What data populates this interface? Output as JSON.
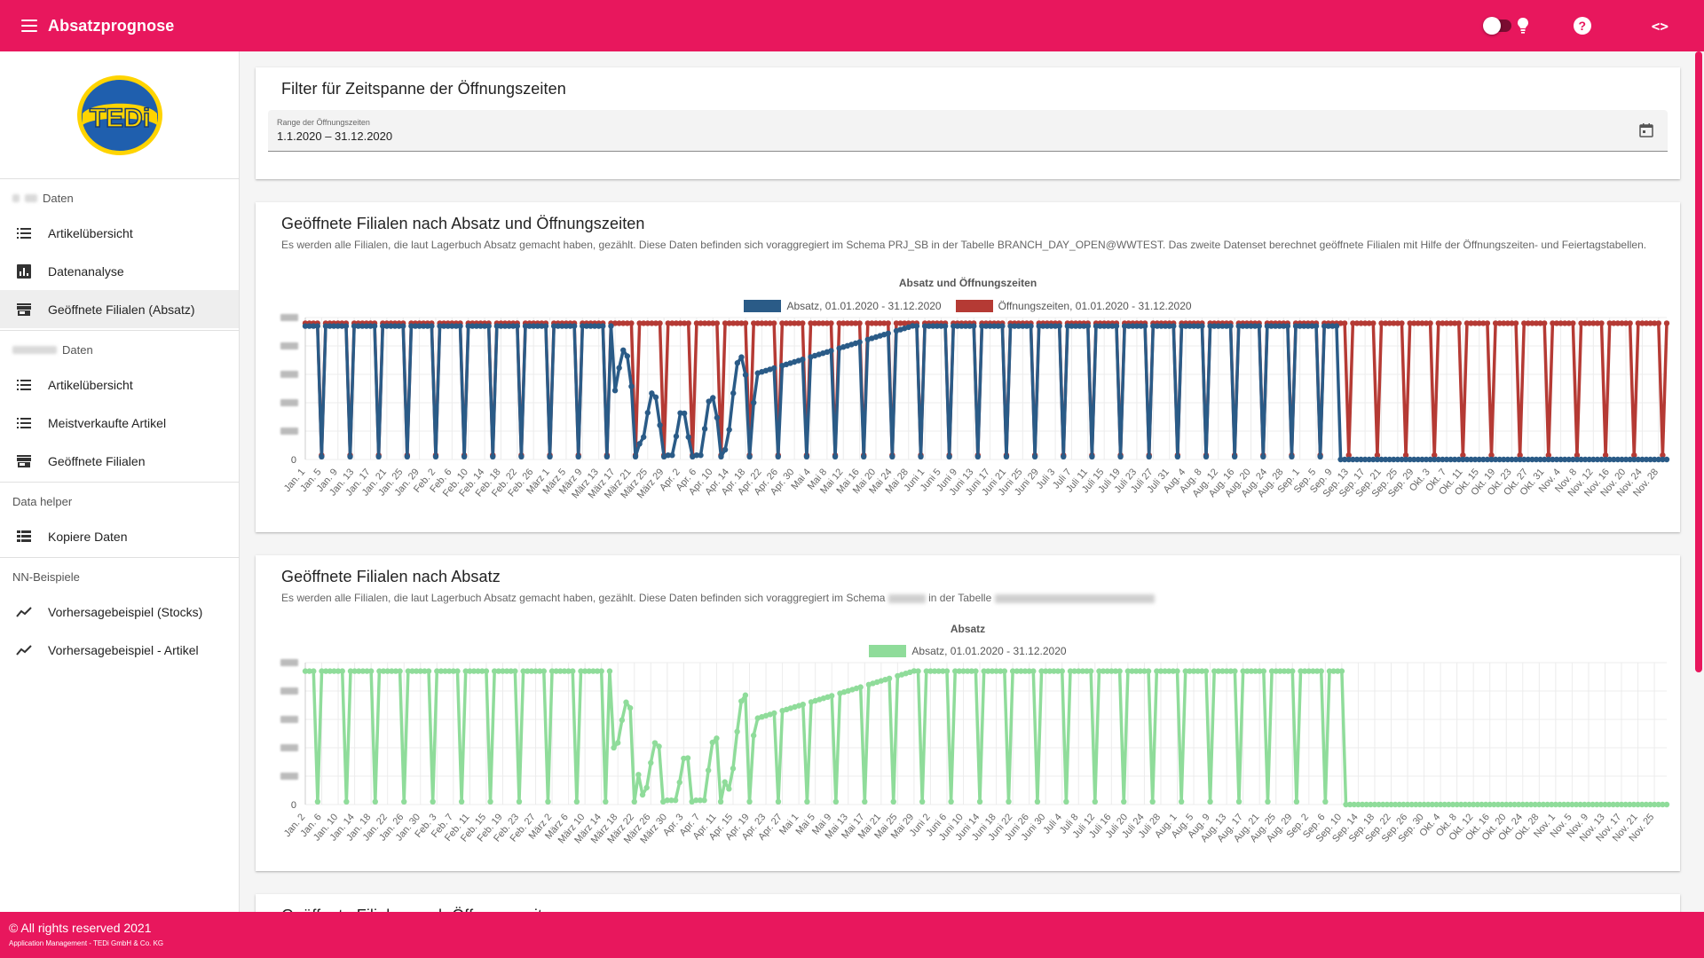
{
  "app": {
    "title": "Absatzprognose",
    "brand_color": "#e8175d"
  },
  "header": {
    "toggle_state": "on",
    "help_label": "?",
    "code_label": "<>"
  },
  "sidebar": {
    "logo_text": "TEDi",
    "sections": [
      {
        "label": "Daten",
        "items": [
          {
            "label": "Artikelübersicht",
            "icon": "list-icon"
          },
          {
            "label": "Datenanalyse",
            "icon": "analytics-icon"
          },
          {
            "label": "Geöffnete Filialen (Absatz)",
            "icon": "store-icon",
            "active": true
          }
        ]
      },
      {
        "label": "Daten",
        "items": [
          {
            "label": "Artikelübersicht",
            "icon": "list-icon"
          },
          {
            "label": "Meistverkaufte Artikel",
            "icon": "list-icon"
          },
          {
            "label": "Geöffnete Filialen",
            "icon": "store-icon"
          }
        ]
      },
      {
        "label": "Data helper",
        "items": [
          {
            "label": "Kopiere Daten",
            "icon": "table-icon"
          }
        ]
      },
      {
        "label": "NN-Beispiele",
        "items": [
          {
            "label": "Vorhersagebeispiel (Stocks)",
            "icon": "trend-icon"
          },
          {
            "label": "Vorhersagebeispiel - Artikel",
            "icon": "trend-icon"
          }
        ]
      }
    ]
  },
  "filter": {
    "title": "Filter für Zeitspanne der Öffnungszeiten",
    "field_label": "Range der Öffnungszeiten",
    "field_value": "1.1.2020 – 31.12.2020"
  },
  "card1": {
    "title": "Geöffnete Filialen nach Absatz und Öffnungszeiten",
    "description": "Es werden alle Filialen, die laut Lagerbuch Absatz gemacht haben, gezählt. Diese Daten befinden sich voraggregiert im Schema PRJ_SB in der Tabelle BRANCH_DAY_OPEN@WWTEST. Das zweite Datenset berechnet geöffnete Filialen mit Hilfe der Öffnungszeiten- und Feiertagstabellen."
  },
  "card2": {
    "title": "Geöffnete Filialen nach Absatz",
    "description_part1": "Es werden alle Filialen, die laut Lagerbuch Absatz gemacht haben, gezählt. Diese Daten befinden sich voraggregiert im Schema",
    "description_part2": "in der Tabelle"
  },
  "card3": {
    "title": "Geöffnete Filialen nach Öffnungszeiten"
  },
  "footer": {
    "copyright": "© All rights reserved 2021",
    "subline": "Application Management - TEDi GmbH & Co. KG"
  },
  "chart_data": [
    {
      "type": "line",
      "title": "Absatz und Öffnungszeiten",
      "y_tick_labels_visible": [
        "0"
      ],
      "x_tick_labels": [
        "Jan. 1",
        "Jan. 5",
        "Jan. 9",
        "Jan. 13",
        "Jan. 17",
        "Jan. 21",
        "Jan. 25",
        "Jan. 29",
        "Feb. 2",
        "Feb. 6",
        "Feb. 10",
        "Feb. 14",
        "Feb. 18",
        "Feb. 22",
        "Feb. 26",
        "März 1",
        "März 5",
        "März 9",
        "März 13",
        "März 17",
        "März 21",
        "März 25",
        "März 29",
        "Apr. 2",
        "Apr. 6",
        "Apr. 10",
        "Apr. 14",
        "Apr. 18",
        "Apr. 22",
        "Apr. 26",
        "Apr. 30",
        "Mai 4",
        "Mai 8",
        "Mai 12",
        "Mai 16",
        "Mai 20",
        "Mai 24",
        "Mai 28",
        "Juni 1",
        "Juni 5",
        "Juni 9",
        "Juni 13",
        "Juni 17",
        "Juni 21",
        "Juni 25",
        "Juni 29",
        "Juli 3",
        "Juli 7",
        "Juli 11",
        "Juli 15",
        "Juli 19",
        "Juli 23",
        "Juli 27",
        "Juli 31",
        "Aug. 4",
        "Aug. 8",
        "Aug. 12",
        "Aug. 16",
        "Aug. 20",
        "Aug. 24",
        "Aug. 28",
        "Sep. 1",
        "Sep. 5",
        "Sep. 9",
        "Sep. 13",
        "Sep. 17",
        "Sep. 21",
        "Sep. 25",
        "Sep. 29",
        "Okt. 3",
        "Okt. 7",
        "Okt. 11",
        "Okt. 15",
        "Okt. 19",
        "Okt. 23",
        "Okt. 27",
        "Okt. 31",
        "Nov. 4",
        "Nov. 8",
        "Nov. 12",
        "Nov. 16",
        "Nov. 20",
        "Nov. 24",
        "Nov. 28"
      ],
      "x_start": "2020-01-01",
      "x_end": "2020-11-30",
      "series": [
        {
          "name": "Absatz, 01.01.2020 - 31.12.2020",
          "color": "#2a5b87",
          "sales_end": "2020-09-10"
        },
        {
          "name": "Öffnungszeiten, 01.01.2020 - 31.12.2020",
          "color": "#b53a34"
        }
      ],
      "y_relative_max": 1.0,
      "lockdown_period": [
        "2020-03-17",
        "2020-04-20"
      ]
    },
    {
      "type": "line",
      "title": "Absatz",
      "y_tick_labels_visible": [
        "0"
      ],
      "x_tick_labels": [
        "Jan. 2",
        "Jan. 6",
        "Jan. 10",
        "Jan. 14",
        "Jan. 18",
        "Jan. 22",
        "Jan. 26",
        "Jan. 30",
        "Feb. 3",
        "Feb. 7",
        "Feb. 11",
        "Feb. 15",
        "Feb. 19",
        "Feb. 23",
        "Feb. 27",
        "März 2",
        "März 6",
        "März 10",
        "März 14",
        "März 18",
        "März 22",
        "März 26",
        "März 30",
        "Apr. 3",
        "Apr. 7",
        "Apr. 11",
        "Apr. 15",
        "Apr. 19",
        "Apr. 23",
        "Apr. 27",
        "Mai 1",
        "Mai 5",
        "Mai 9",
        "Mai 13",
        "Mai 17",
        "Mai 21",
        "Mai 25",
        "Mai 29",
        "Juni 2",
        "Juni 6",
        "Juni 10",
        "Juni 14",
        "Juni 18",
        "Juni 22",
        "Juni 26",
        "Juni 30",
        "Juli 4",
        "Juli 8",
        "Juli 12",
        "Juli 16",
        "Juli 20",
        "Juli 24",
        "Juli 28",
        "Aug. 1",
        "Aug. 5",
        "Aug. 9",
        "Aug. 13",
        "Aug. 17",
        "Aug. 21",
        "Aug. 25",
        "Aug. 29",
        "Sep. 2",
        "Sep. 6",
        "Sep. 10",
        "Sep. 14",
        "Sep. 18",
        "Sep. 22",
        "Sep. 26",
        "Sep. 30",
        "Okt. 4",
        "Okt. 8",
        "Okt. 12",
        "Okt. 16",
        "Okt. 20",
        "Okt. 24",
        "Okt. 28",
        "Nov. 1",
        "Nov. 5",
        "Nov. 9",
        "Nov. 13",
        "Nov. 17",
        "Nov. 21",
        "Nov. 25"
      ],
      "x_start": "2020-01-02",
      "x_end": "2020-11-28",
      "series": [
        {
          "name": "Absatz, 01.01.2020 - 31.12.2020",
          "color": "#8fdc9a",
          "sales_end": "2020-09-10"
        }
      ],
      "y_relative_max": 1.0,
      "lockdown_period": [
        "2020-03-17",
        "2020-04-20"
      ]
    }
  ]
}
